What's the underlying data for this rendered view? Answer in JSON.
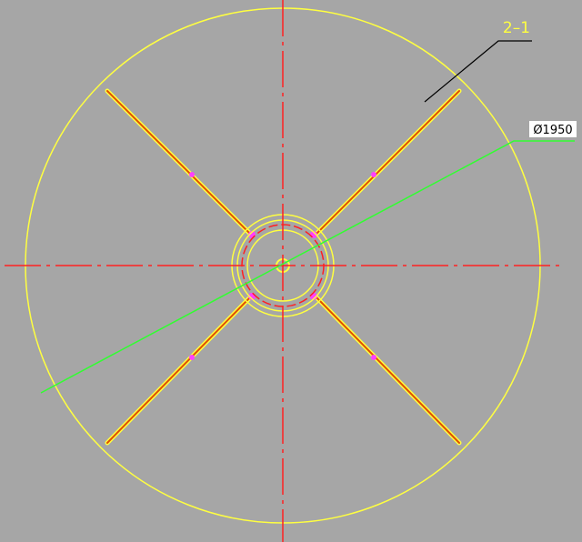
{
  "labels": {
    "part": "2–1",
    "diameter": "Ø1950"
  }
}
